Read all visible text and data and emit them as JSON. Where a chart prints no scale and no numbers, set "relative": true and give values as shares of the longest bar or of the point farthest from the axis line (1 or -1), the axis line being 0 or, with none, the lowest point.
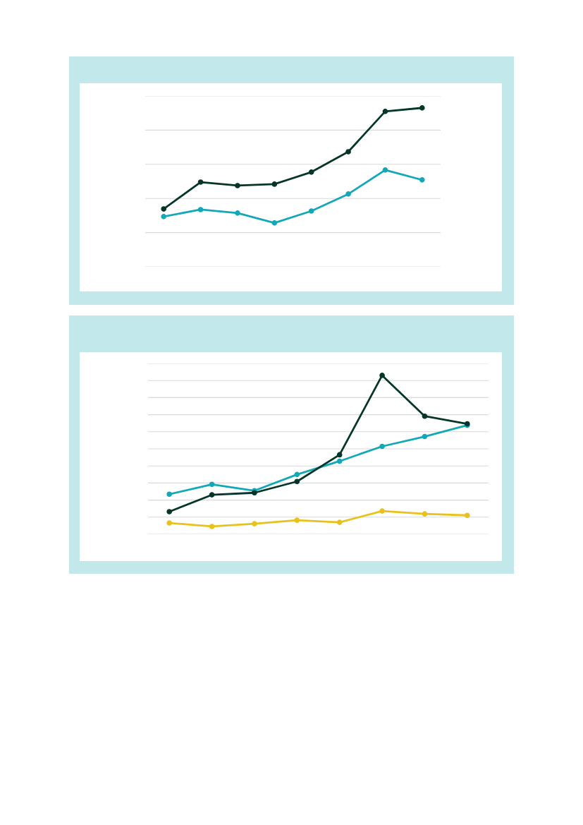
{
  "chart_data": [
    {
      "type": "line",
      "relative": true,
      "grid": "y",
      "marker": "circle",
      "line_style": "solid",
      "categories": [
        null,
        null,
        null,
        null,
        null,
        null,
        null,
        null
      ],
      "series": [
        {
          "color": "#06352a",
          "values": [
            0.364,
            0.533,
            0.511,
            0.52,
            0.596,
            0.724,
            0.978,
            1
          ]
        },
        {
          "color": "#12a8b8",
          "values": [
            0.316,
            0.36,
            0.338,
            0.276,
            0.351,
            0.458,
            0.609,
            0.547
          ]
        }
      ]
    },
    {
      "type": "line",
      "relative": true,
      "grid": "y",
      "marker": "circle",
      "line_style": "solid",
      "categories": [
        null,
        null,
        null,
        null,
        null,
        null,
        null,
        null
      ],
      "series": [
        {
          "color": "#06352a",
          "values": [
            0.142,
            0.248,
            0.261,
            0.332,
            0.5,
            1,
            0.743,
            0.695
          ]
        },
        {
          "color": "#12a8b8",
          "values": [
            0.252,
            0.314,
            0.274,
            0.376,
            0.46,
            0.553,
            0.615,
            0.686
          ]
        },
        {
          "color": "#e8c21c",
          "values": [
            0.071,
            0.049,
            0.066,
            0.088,
            0.075,
            0.146,
            0.128,
            0.119
          ]
        }
      ]
    }
  ]
}
